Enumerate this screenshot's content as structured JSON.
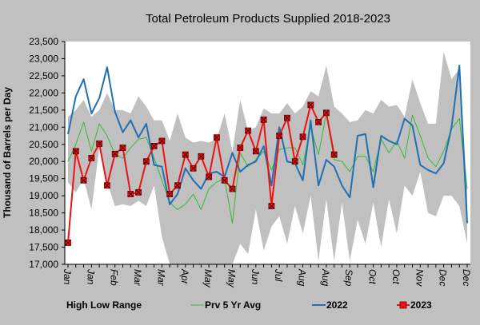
{
  "chart_data": {
    "type": "line",
    "title": "Total Petroleum Products Supplied  2018-2023",
    "ylabel": "Thousand of Barrels per Day",
    "xlabel": "",
    "ylim": [
      17000,
      23500
    ],
    "yticks": [
      17000,
      17500,
      18000,
      18500,
      19000,
      19500,
      20000,
      20500,
      21000,
      21500,
      22000,
      22500,
      23000,
      23500
    ],
    "ytick_labels": [
      "17,000",
      "17,500",
      "18,000",
      "18,500",
      "19,000",
      "19,500",
      "20,000",
      "20,500",
      "21,000",
      "21,500",
      "22,000",
      "22,500",
      "23,000",
      "23,500"
    ],
    "x_tick_labels": [
      "Jan",
      "Jan",
      "Feb",
      "Mar",
      "Mar",
      "Apr",
      "May",
      "May",
      "Jun",
      "Jul",
      "Aug",
      "Aug",
      "Sep",
      "Oct",
      "Oct",
      "Nov",
      "Dec",
      "Dec"
    ],
    "weeks": 52,
    "grid": false,
    "legend_position": "bottom",
    "range": {
      "name": "High Low Range",
      "color": "#c0c0c0",
      "high": [
        21300,
        21500,
        21800,
        21300,
        21500,
        22000,
        21500,
        21500,
        21400,
        21900,
        21600,
        21200,
        21200,
        20600,
        21400,
        20700,
        20550,
        20600,
        20550,
        20650,
        21400,
        20300,
        21800,
        20900,
        21000,
        21550,
        21400,
        21400,
        21700,
        21400,
        21600,
        22050,
        21900,
        22800,
        21600,
        21400,
        21150,
        21200,
        21500,
        21400,
        21800,
        21600,
        21650,
        21300,
        22400,
        21700,
        21100,
        21100,
        23200,
        22400,
        22700,
        19200
      ],
      "low": [
        19400,
        19100,
        19500,
        18600,
        20400,
        19400,
        18700,
        18750,
        18700,
        18850,
        18700,
        19300,
        17800,
        17000,
        17000,
        17000,
        17000,
        17000,
        17000,
        17000,
        17000,
        17000,
        17600,
        17300,
        18600,
        17400,
        18100,
        18400,
        17600,
        18700,
        17900,
        19000,
        17100,
        18900,
        17100,
        18800,
        17100,
        18300,
        17600,
        18800,
        17500,
        18900,
        17900,
        19300,
        19000,
        19700,
        18500,
        18400,
        19000,
        19000,
        18700,
        17600
      ]
    },
    "series": [
      {
        "name": "Prv 5 Yr Avg",
        "color": "#33bb33",
        "width": 1,
        "values": [
          20000,
          20500,
          21150,
          20300,
          21100,
          20750,
          20200,
          20100,
          20400,
          20650,
          20700,
          20100,
          19450,
          18800,
          18600,
          18750,
          19050,
          18600,
          19200,
          19400,
          19500,
          18200,
          20250,
          19850,
          20050,
          20300,
          19750,
          20350,
          20400,
          20400,
          19900,
          21000,
          20200,
          21400,
          20050,
          20000,
          19700,
          20150,
          20150,
          19700,
          20650,
          20250,
          20600,
          20100,
          21350,
          20750,
          20100,
          19850,
          20300,
          20950,
          21250,
          19200
        ]
      },
      {
        "name": "2022",
        "color": "#1f6fb5",
        "width": 2,
        "values": [
          20800,
          21900,
          22400,
          21400,
          21850,
          22750,
          21450,
          20850,
          21200,
          20700,
          21100,
          19900,
          19850,
          18750,
          19050,
          19800,
          19450,
          19200,
          19650,
          19700,
          19550,
          20250,
          19700,
          19900,
          20000,
          20450,
          19300,
          21000,
          20000,
          19950,
          19450,
          21200,
          19300,
          20050,
          19850,
          19300,
          18950,
          20750,
          20800,
          19250,
          20750,
          20600,
          20500,
          21250,
          21050,
          19900,
          19750,
          19650,
          19950,
          21000,
          22800,
          18200
        ]
      },
      {
        "name": "2023",
        "color": "#ee1111",
        "width": 2,
        "marker": "x-square",
        "values": [
          17630,
          20300,
          19450,
          20100,
          20520,
          19300,
          20220,
          20400,
          19050,
          19100,
          20000,
          20450,
          20600,
          19050,
          19300,
          20200,
          19800,
          20150,
          19550,
          20700,
          19450,
          19200,
          20400,
          20900,
          20300,
          21220,
          18700,
          20750,
          21270,
          20000,
          20720,
          21650,
          21150,
          21420,
          20200
        ]
      }
    ]
  }
}
